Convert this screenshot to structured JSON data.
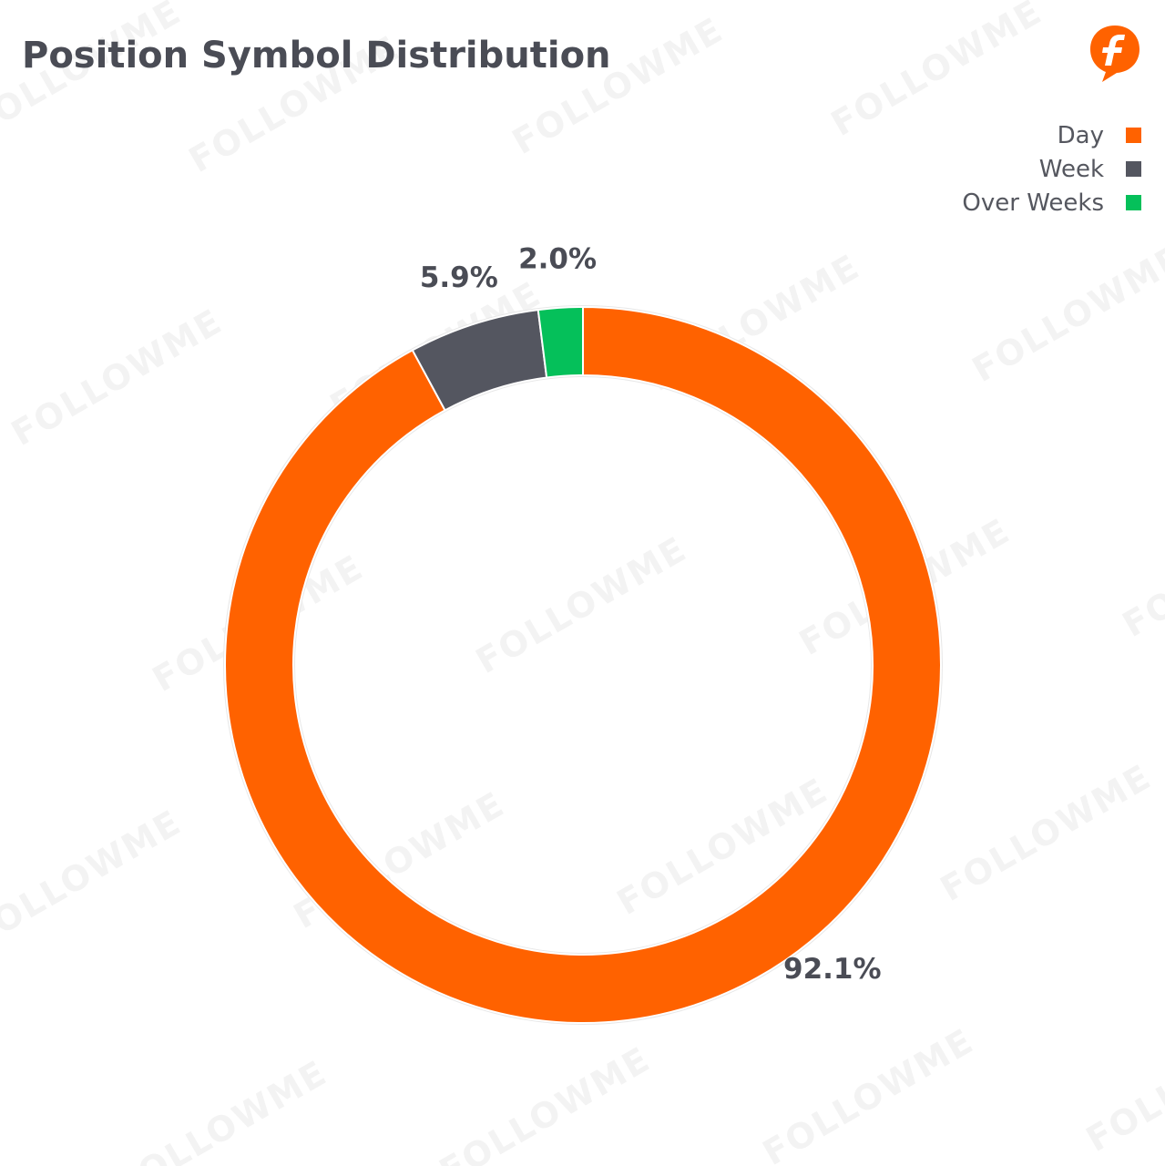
{
  "header": {
    "title": "Position Symbol Distribution",
    "logo_icon": "followme-f-logo-icon"
  },
  "watermark": {
    "text": "FOLLOWME"
  },
  "legend": {
    "items": [
      {
        "label": "Day",
        "color": "#ff6200"
      },
      {
        "label": "Week",
        "color": "#545660"
      },
      {
        "label": "Over Weeks",
        "color": "#05c05a"
      }
    ]
  },
  "chart_data": {
    "type": "pie",
    "variant": "donut",
    "title": "Position Symbol Distribution",
    "legend_position": "top-right",
    "categories": [
      "Day",
      "Week",
      "Over Weeks"
    ],
    "values": [
      92.1,
      5.9,
      2.0
    ],
    "labels": [
      "92.1%",
      "5.9%",
      "2.0%"
    ],
    "colors": [
      "#ff6200",
      "#545660",
      "#05c05a"
    ],
    "start_angle": "12 o'clock",
    "direction": "clockwise"
  }
}
